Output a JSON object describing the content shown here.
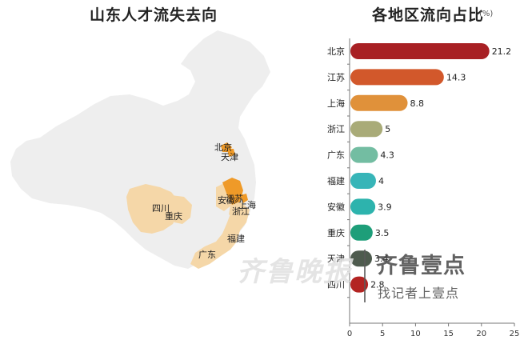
{
  "map_panel": {
    "title": "山东人才流失去向",
    "labels": {
      "beijing": "北京",
      "tianjin": "天津",
      "jiangsu": "江苏",
      "anhui": "安徽",
      "shanghai": "上海",
      "zhejiang": "浙江",
      "sichuan": "四川",
      "chongqing": "重庆",
      "fujian": "福建",
      "guangdong": "广东"
    },
    "colors": {
      "base": "#eeeeee",
      "light_highlight": "#f5d7a8",
      "strong_highlight": "#ef9a28"
    }
  },
  "bar_panel": {
    "title": "各地区流向占比",
    "unit": "(%)"
  },
  "chart_data": {
    "type": "bar",
    "orientation": "horizontal",
    "title": "各地区流向占比",
    "unit": "(%)",
    "categories": [
      "北京",
      "江苏",
      "上海",
      "浙江",
      "广东",
      "福建",
      "安徽",
      "重庆",
      "天津",
      "四川"
    ],
    "values": [
      21.2,
      14.3,
      8.8,
      5,
      4.3,
      4,
      3.9,
      3.5,
      3.4,
      2.8
    ],
    "value_labels": [
      "21.2",
      "14.3",
      "8.8",
      "5",
      "4.3",
      "4",
      "3.9",
      "3.5",
      "3.4",
      "2.8"
    ],
    "colors": [
      "#a82024",
      "#d2582b",
      "#e0913a",
      "#a9ab78",
      "#73bda2",
      "#37b5b8",
      "#2db3ad",
      "#1e9e79",
      "#4e5b4e",
      "#b32422"
    ],
    "xlim": [
      0,
      25
    ],
    "xticks": [
      "0",
      "5",
      "10",
      "15",
      "20",
      "25"
    ]
  },
  "watermark": {
    "brand_script": "齐鲁晚报",
    "brand": "齐鲁壹点",
    "slogan": "找记者上壹点"
  }
}
